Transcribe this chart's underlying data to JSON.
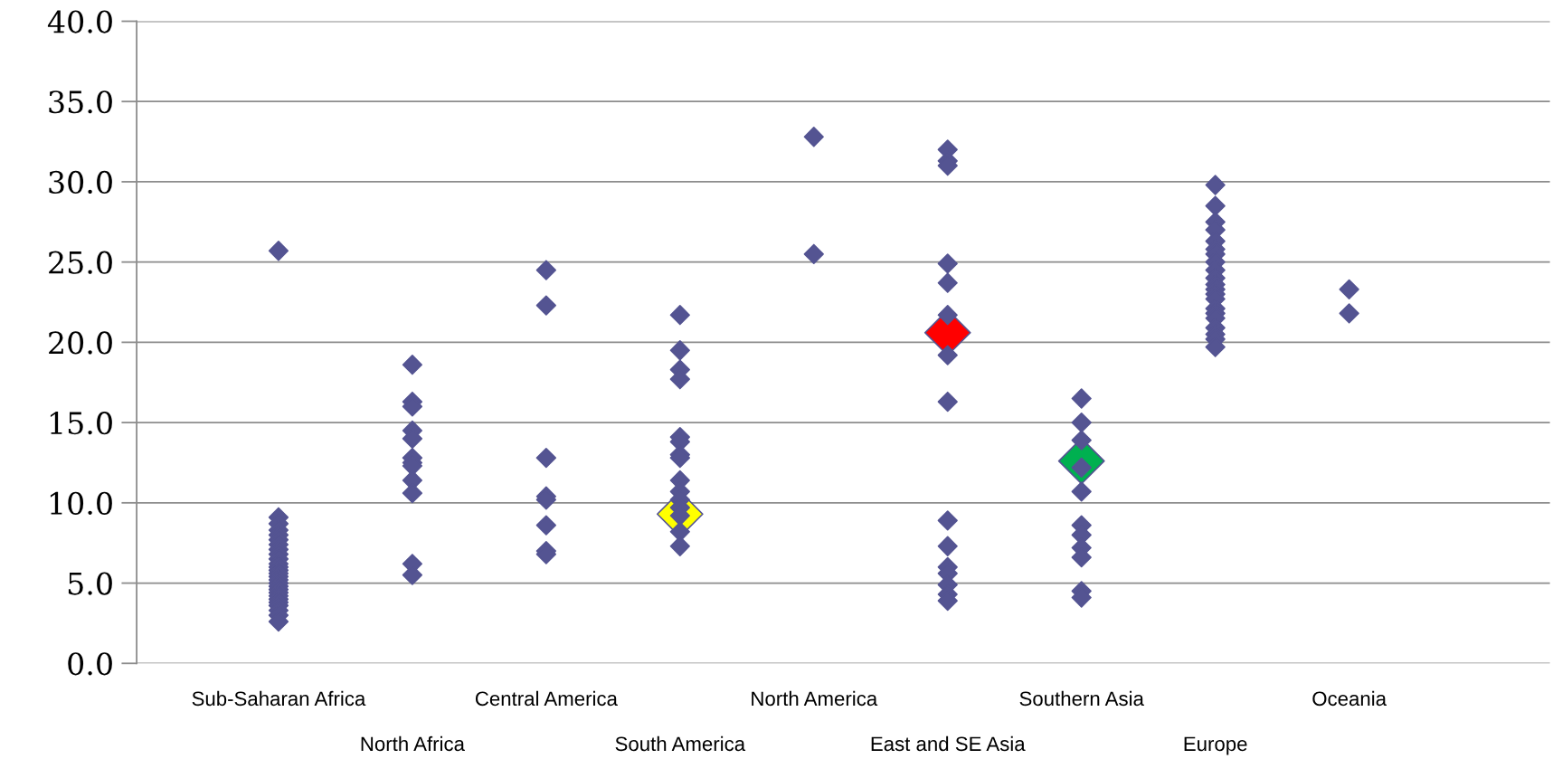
{
  "chart_data": {
    "type": "scatter",
    "categories": [
      "Sub-Saharan Africa",
      "North Africa",
      "Central America",
      "South America",
      "North America",
      "East and SE Asia",
      "Southern Asia",
      "Europe",
      "Oceania"
    ],
    "series": [
      {
        "color": "#545492",
        "x": [
          "Sub-Saharan Africa",
          "Sub-Saharan Africa",
          "Sub-Saharan Africa",
          "Sub-Saharan Africa",
          "Sub-Saharan Africa",
          "Sub-Saharan Africa",
          "Sub-Saharan Africa",
          "Sub-Saharan Africa",
          "Sub-Saharan Africa",
          "Sub-Saharan Africa",
          "Sub-Saharan Africa",
          "Sub-Saharan Africa",
          "Sub-Saharan Africa",
          "Sub-Saharan Africa",
          "Sub-Saharan Africa",
          "Sub-Saharan Africa",
          "Sub-Saharan Africa",
          "Sub-Saharan Africa",
          "Sub-Saharan Africa",
          "Sub-Saharan Africa",
          "Sub-Saharan Africa",
          "Sub-Saharan Africa",
          "Sub-Saharan Africa",
          "Sub-Saharan Africa",
          "Sub-Saharan Africa",
          "Sub-Saharan Africa",
          "Sub-Saharan Africa",
          "North Africa",
          "North Africa",
          "North Africa",
          "North Africa",
          "North Africa",
          "North Africa",
          "North Africa",
          "North Africa",
          "North Africa",
          "North Africa",
          "North Africa",
          "North Africa",
          "Central America",
          "Central America",
          "Central America",
          "Central America",
          "Central America",
          "Central America",
          "Central America",
          "Central America",
          "South America",
          "South America",
          "South America",
          "South America",
          "South America",
          "South America",
          "South America",
          "South America",
          "South America",
          "South America",
          "South America",
          "South America",
          "South America",
          "South America",
          "South America",
          "North America",
          "North America",
          "East and SE Asia",
          "East and SE Asia",
          "East and SE Asia",
          "East and SE Asia",
          "East and SE Asia",
          "East and SE Asia",
          "East and SE Asia",
          "East and SE Asia",
          "East and SE Asia",
          "East and SE Asia",
          "East and SE Asia",
          "East and SE Asia",
          "East and SE Asia",
          "East and SE Asia",
          "East and SE Asia",
          "Southern Asia",
          "Southern Asia",
          "Southern Asia",
          "Southern Asia",
          "Southern Asia",
          "Southern Asia",
          "Southern Asia",
          "Southern Asia",
          "Southern Asia",
          "Southern Asia",
          "Southern Asia",
          "Europe",
          "Europe",
          "Europe",
          "Europe",
          "Europe",
          "Europe",
          "Europe",
          "Europe",
          "Europe",
          "Europe",
          "Europe",
          "Europe",
          "Europe",
          "Europe",
          "Europe",
          "Europe",
          "Europe",
          "Europe",
          "Europe",
          "Europe",
          "Europe",
          "Oceania",
          "Oceania"
        ],
        "values": [
          25.7,
          9.1,
          8.7,
          8.3,
          8.0,
          7.7,
          7.4,
          7.1,
          6.8,
          6.5,
          6.2,
          6.0,
          5.8,
          5.6,
          5.4,
          5.2,
          5.0,
          4.8,
          4.6,
          4.4,
          4.2,
          4.0,
          3.8,
          3.6,
          3.3,
          3.0,
          2.6,
          18.6,
          16.3,
          16.0,
          14.5,
          14.0,
          12.8,
          12.5,
          12.3,
          11.4,
          10.6,
          6.2,
          5.5,
          24.5,
          22.3,
          12.8,
          10.4,
          10.2,
          8.6,
          7.0,
          6.8,
          21.7,
          19.5,
          18.3,
          17.7,
          14.1,
          13.8,
          13.0,
          12.8,
          11.4,
          10.7,
          10.2,
          9.7,
          9.2,
          8.2,
          7.3,
          32.8,
          25.5,
          32.0,
          31.3,
          31.0,
          24.9,
          23.7,
          21.7,
          19.2,
          16.3,
          8.9,
          7.3,
          6.0,
          5.6,
          4.9,
          4.3,
          3.9,
          16.5,
          15.0,
          13.9,
          12.2,
          10.7,
          8.6,
          8.0,
          7.2,
          6.6,
          4.5,
          4.1,
          29.8,
          28.5,
          27.5,
          27.0,
          26.3,
          25.8,
          25.5,
          25.0,
          24.5,
          24.0,
          23.6,
          23.3,
          23.0,
          22.7,
          22.1,
          21.8,
          21.5,
          20.9,
          20.5,
          20.2,
          19.7,
          23.3,
          21.8
        ]
      },
      {
        "color": "#ffff00",
        "x": [
          "South America"
        ],
        "values": [
          9.3
        ]
      },
      {
        "color": "#ff0000",
        "x": [
          "East and SE Asia"
        ],
        "values": [
          20.6
        ]
      },
      {
        "color": "#00b050",
        "x": [
          "Southern Asia"
        ],
        "values": [
          12.6
        ]
      }
    ],
    "ylim": [
      0,
      40
    ],
    "yticks": [
      {
        "value": 0,
        "label": "0.0"
      },
      {
        "value": 5,
        "label": "5.0"
      },
      {
        "value": 10,
        "label": "10.0"
      },
      {
        "value": 15,
        "label": "15.0"
      },
      {
        "value": 20,
        "label": "20.0"
      },
      {
        "value": 25,
        "label": "25.0"
      },
      {
        "value": 30,
        "label": "30.0"
      },
      {
        "value": 35,
        "label": "35.0"
      },
      {
        "value": 40,
        "label": "40.0"
      }
    ],
    "grid": "y",
    "marker": "diamond"
  }
}
